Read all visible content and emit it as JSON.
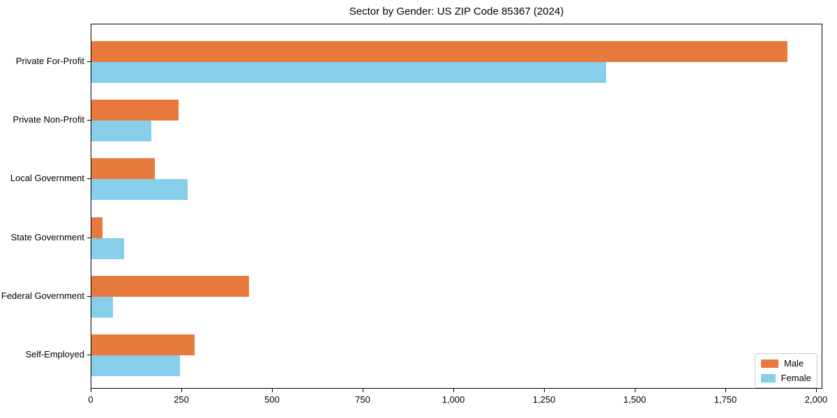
{
  "chart_data": {
    "type": "bar",
    "orientation": "horizontal",
    "title": "Sector by Gender: US ZIP Code 85367 (2024)",
    "categories": [
      "Private For-Profit",
      "Private Non-Profit",
      "Local Government",
      "State Government",
      "Federal Government",
      "Self-Employed"
    ],
    "series": [
      {
        "name": "Male",
        "color": "#e8793d",
        "values": [
          1920,
          240,
          175,
          30,
          435,
          285
        ]
      },
      {
        "name": "Female",
        "color": "#87ceeb",
        "values": [
          1420,
          165,
          265,
          90,
          60,
          245
        ]
      }
    ],
    "xlabel": "",
    "ylabel": "",
    "xlim": [
      0,
      2000
    ],
    "x_ticks": [
      {
        "value": 0,
        "label": "0"
      },
      {
        "value": 250,
        "label": "250"
      },
      {
        "value": 500,
        "label": "500"
      },
      {
        "value": 750,
        "label": "750"
      },
      {
        "value": 1000,
        "label": "1,000"
      },
      {
        "value": 1250,
        "label": "1,250"
      },
      {
        "value": 1500,
        "label": "1,500"
      },
      {
        "value": 1750,
        "label": "1,750"
      },
      {
        "value": 2000,
        "label": "2,000"
      }
    ],
    "grid": false,
    "legend": {
      "position": "lower right",
      "entries": [
        "Male",
        "Female"
      ]
    }
  }
}
